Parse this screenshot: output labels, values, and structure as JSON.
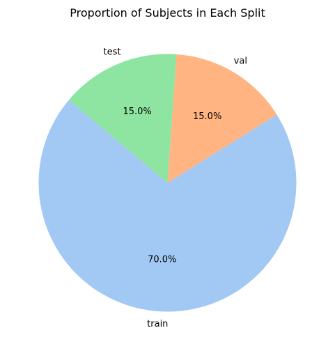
{
  "chart_data": {
    "type": "pie",
    "title": "Proportion of Subjects in Each Split",
    "slices": [
      {
        "label": "train",
        "value": 70.0,
        "pct_text": "70.0%",
        "color": "#a1c9f4"
      },
      {
        "label": "val",
        "value": 15.0,
        "pct_text": "15.0%",
        "color": "#ffb482"
      },
      {
        "label": "test",
        "value": 15.0,
        "pct_text": "15.0%",
        "color": "#8de5a1"
      }
    ],
    "start_angle_deg": 140,
    "direction": "counterclockwise"
  }
}
